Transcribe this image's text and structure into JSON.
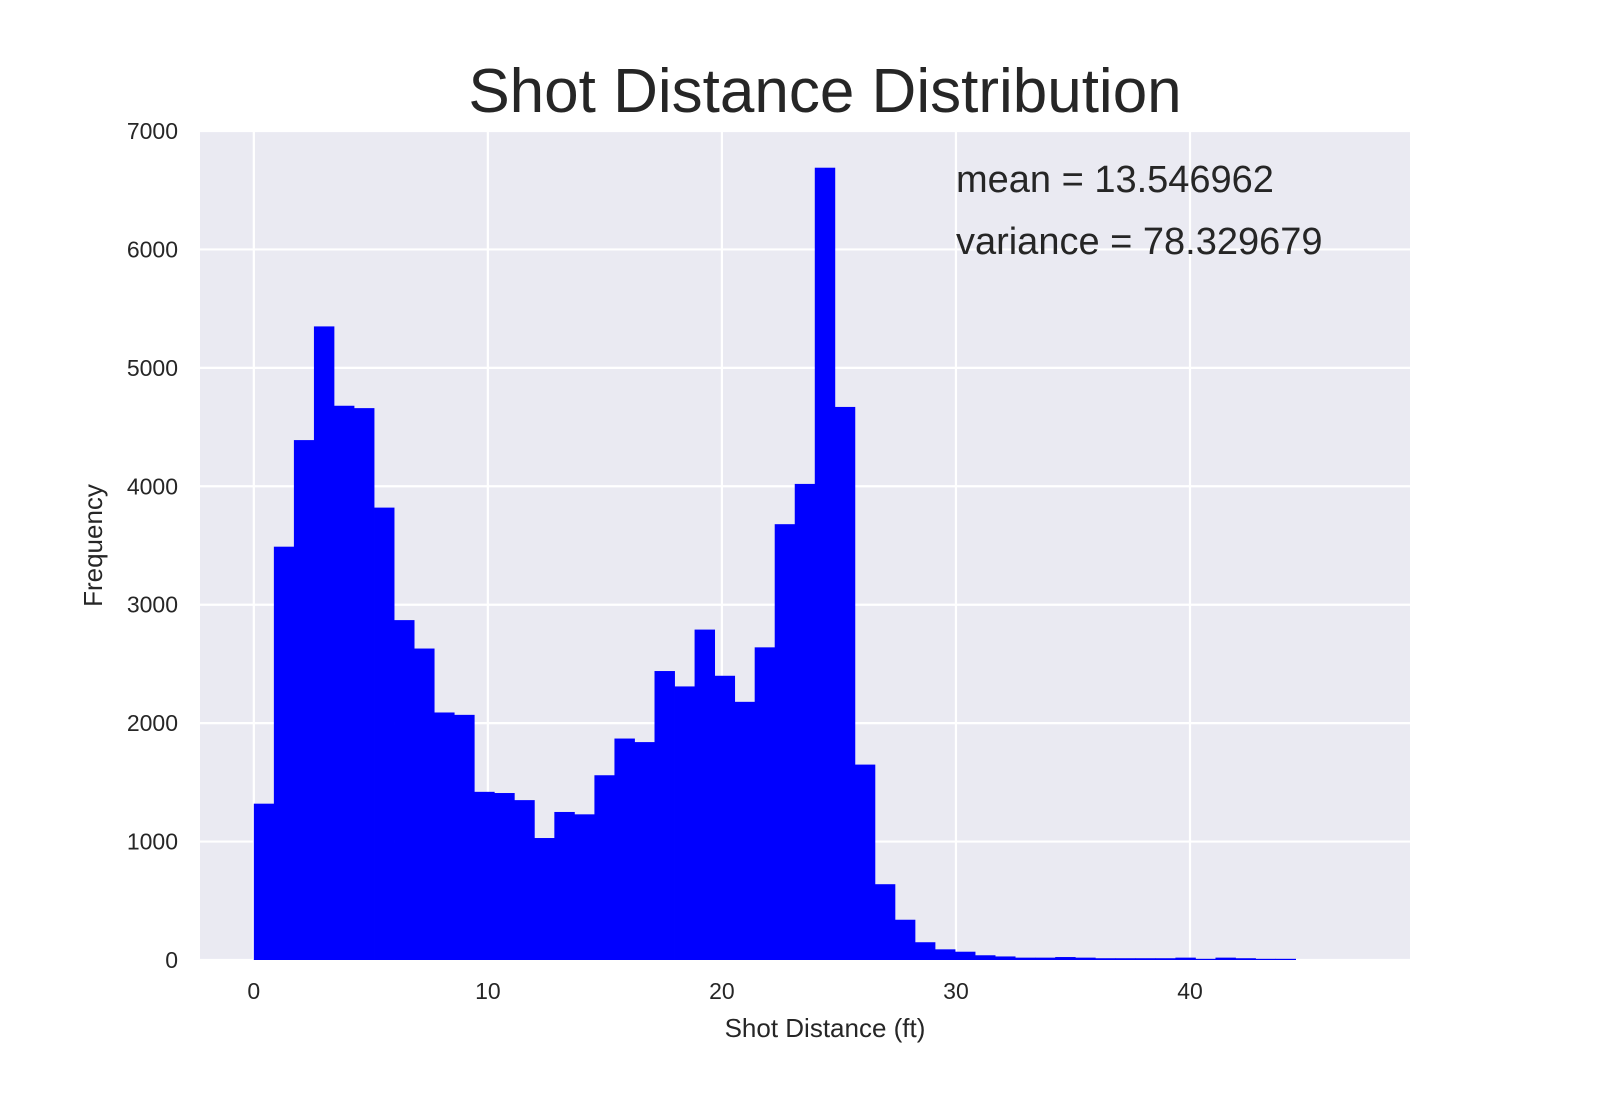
{
  "chart_data": {
    "type": "bar",
    "title": "Shot Distance Distribution",
    "xlabel": "Shot Distance (ft)",
    "ylabel": "Frequency",
    "xlim": [
      -2.3,
      49.4
    ],
    "ylim": [
      0,
      7000
    ],
    "xticks": [
      0,
      10,
      20,
      30,
      40
    ],
    "yticks": [
      0,
      1000,
      2000,
      3000,
      4000,
      5000,
      6000,
      7000
    ],
    "grid": true,
    "bin_width": 0.856,
    "bin_start": 0,
    "values": [
      1320,
      3490,
      4390,
      5350,
      4680,
      4660,
      3820,
      2870,
      2630,
      2090,
      2070,
      1420,
      1410,
      1350,
      1030,
      1250,
      1230,
      1560,
      1870,
      1840,
      2440,
      2310,
      2790,
      2400,
      2180,
      2640,
      3680,
      4020,
      6690,
      4670,
      1650,
      640,
      340,
      150,
      90,
      70,
      40,
      30,
      20,
      20,
      25,
      20,
      15,
      15,
      15,
      15,
      20,
      10,
      20,
      15,
      10,
      10
    ],
    "bar_color": "#0000ff",
    "annotations": [
      "mean = 13.546962",
      "variance = 78.329679"
    ]
  }
}
